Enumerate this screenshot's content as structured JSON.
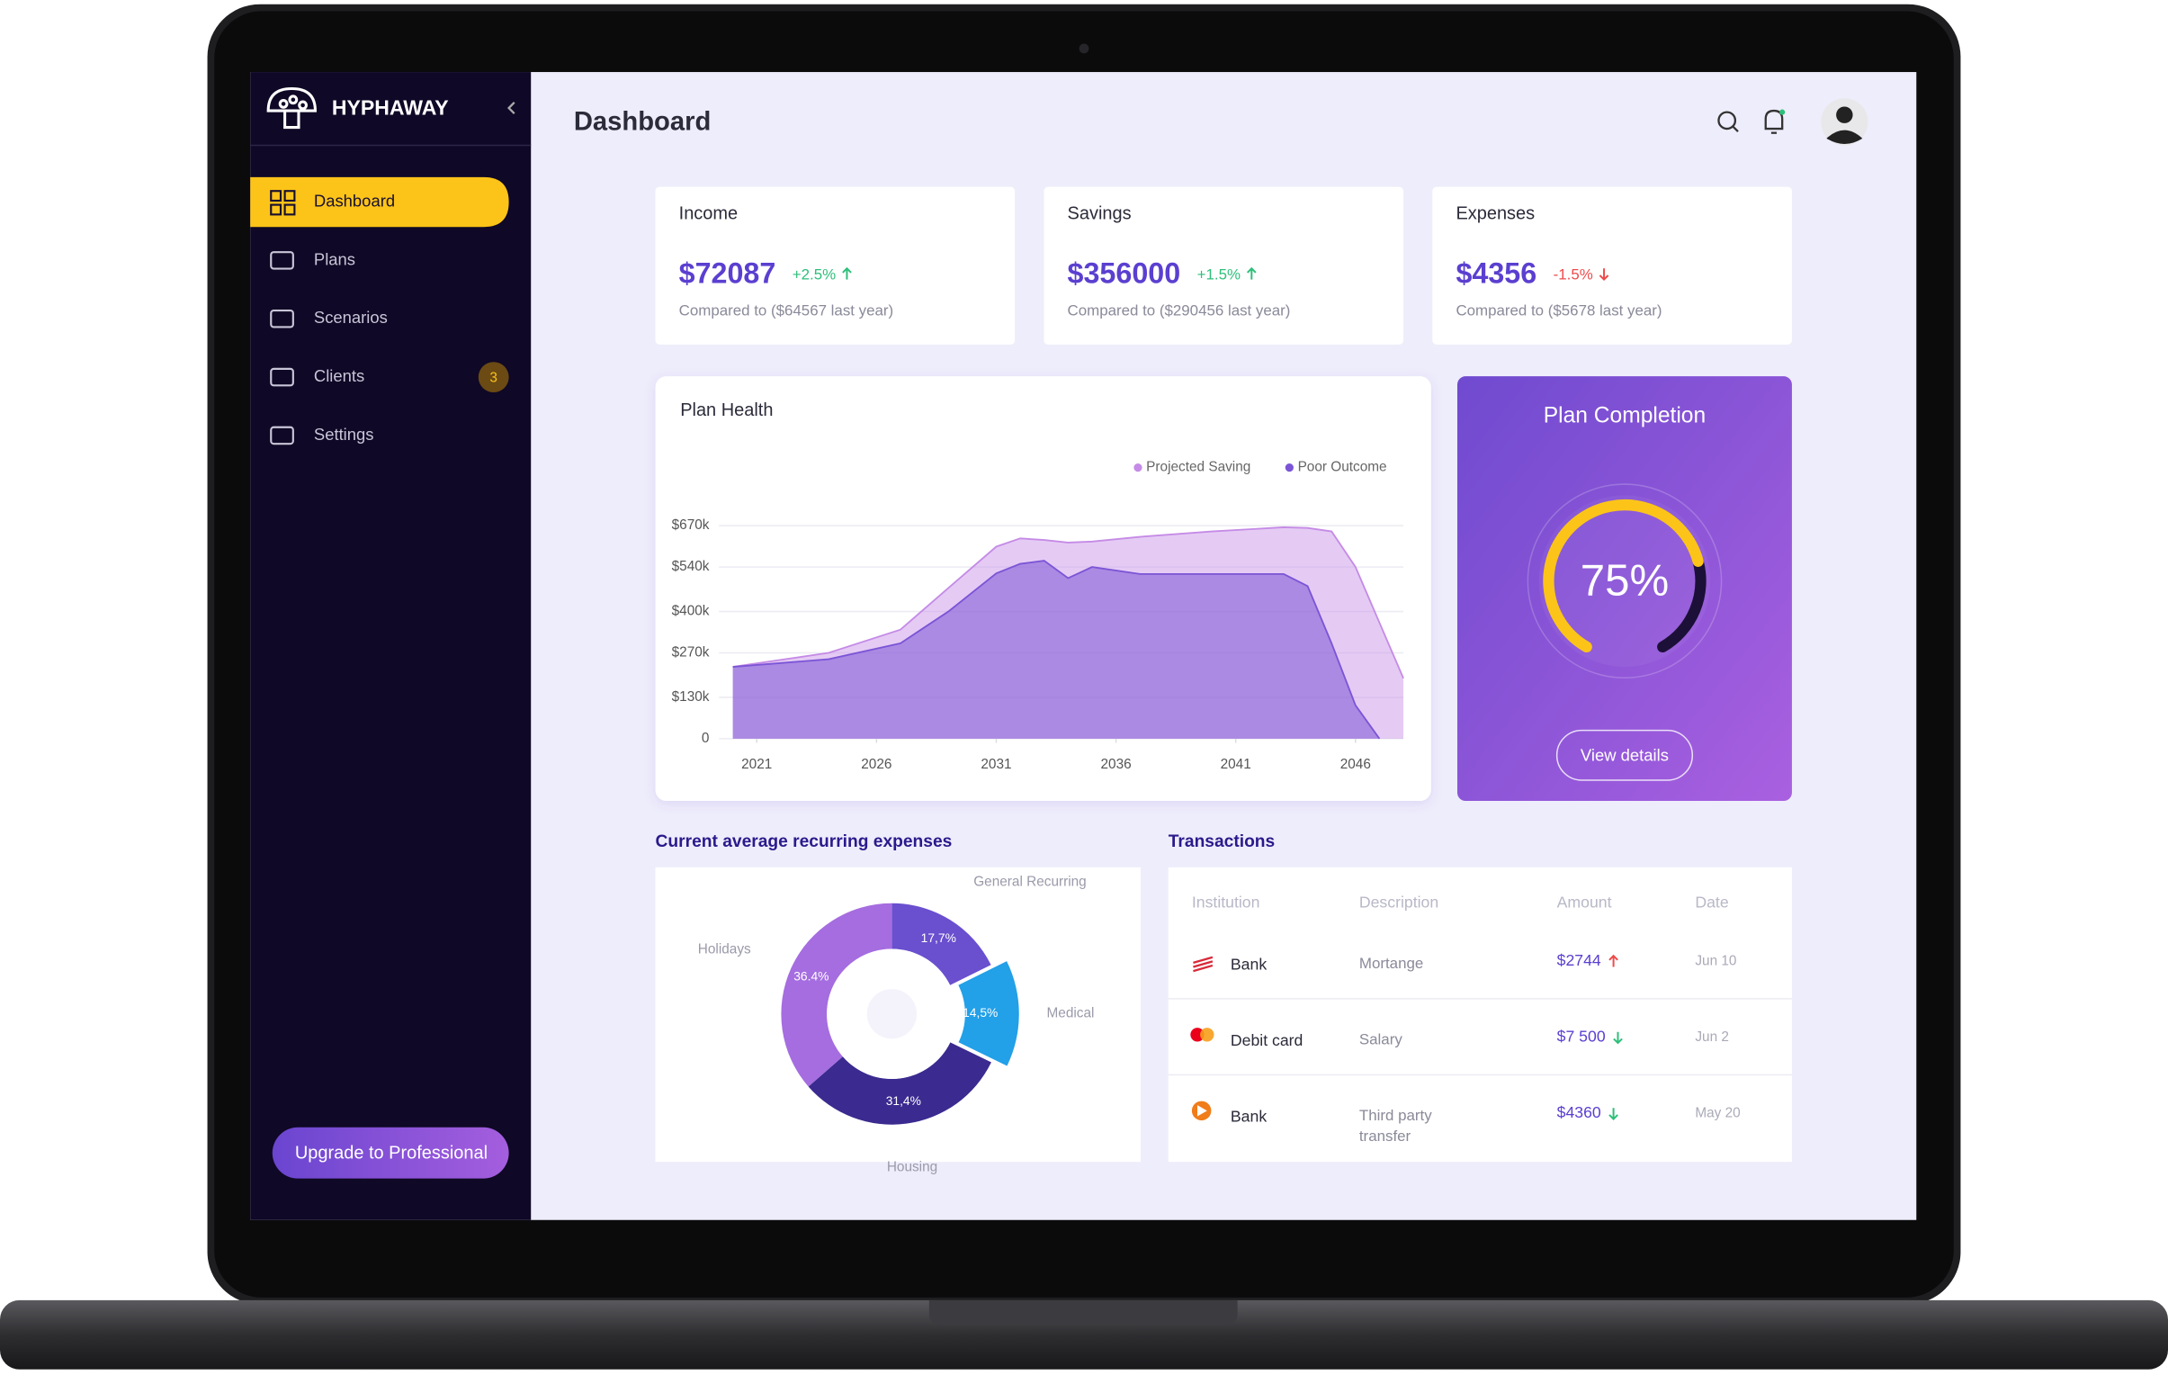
{
  "app": {
    "brand": "HYPHAWAY",
    "nav": [
      {
        "label": "Dashboard",
        "active": true
      },
      {
        "label": "Plans"
      },
      {
        "label": "Scenarios"
      },
      {
        "label": "Clients",
        "badge": 3
      },
      {
        "label": "Settings"
      }
    ],
    "upgrade": "Upgrade to Professional"
  },
  "header": {
    "title": "Dashboard"
  },
  "stats": [
    {
      "label": "Income",
      "value": "$72087",
      "change": "+2.5%",
      "trend": "up",
      "note": "Compared to ($64567 last year)"
    },
    {
      "label": "Savings",
      "value": "$356000",
      "change": "+1.5%",
      "trend": "up",
      "note": "Compared to ($290456 last year)"
    },
    {
      "label": "Expenses",
      "value": "$4356",
      "change": "-1.5%",
      "trend": "down",
      "note": "Compared to ($5678 last year)"
    }
  ],
  "plan_health": {
    "type": "area",
    "title": "Plan Health",
    "x": [
      2020,
      2024,
      2027,
      2029,
      2031,
      2032,
      2033,
      2034,
      2035,
      2037,
      2040,
      2043,
      2044,
      2045,
      2046,
      2047,
      2048
    ],
    "series": [
      {
        "name": "Projected Saving",
        "color": "#c58be6",
        "values": [
          226000,
          270000,
          343000,
          474000,
          604000,
          630000,
          625000,
          617000,
          620000,
          635000,
          652000,
          665000,
          663000,
          652000,
          540000,
          365000,
          190000
        ]
      },
      {
        "name": "Poor Outcome",
        "color": "#7b55d6",
        "values": [
          226000,
          250000,
          300000,
          400000,
          520000,
          550000,
          560000,
          505000,
          540000,
          518000,
          518000,
          518000,
          480000,
          300000,
          105000,
          0,
          null
        ]
      }
    ],
    "xlim": [
      2020,
      2048
    ],
    "xticks": [
      2021,
      2026,
      2031,
      2036,
      2041,
      2046
    ],
    "ylim": [
      0,
      670000
    ],
    "yticks": [
      0,
      {
        "value": 130000,
        "label": "$130k"
      },
      {
        "value": 270000,
        "label": "$270k"
      },
      {
        "value": 400000,
        "label": "$400k"
      },
      {
        "value": 540000,
        "label": "$540k"
      },
      {
        "value": 670000,
        "label": "$670k"
      }
    ],
    "grid": true,
    "legend": "top-right"
  },
  "plan_completion": {
    "type": "gauge",
    "title": "Plan Completion",
    "value": 75,
    "value_label": "75%",
    "color": "#fcc419",
    "track_color": "#1c1038",
    "button": "View details"
  },
  "expenses": {
    "type": "donut",
    "title": "Current average recurring expenses",
    "categories": [
      "General Recurring",
      "Medical",
      "Housing",
      "Holidays"
    ],
    "values": [
      17.7,
      14.5,
      31.4,
      36.4
    ],
    "value_labels": [
      "17,7%",
      "14,5%",
      "31,4%",
      "36.4%"
    ],
    "colors": [
      "#6a4fcf",
      "#22a0e8",
      "#3b2a8f",
      "#a56de0"
    ],
    "highlight": 1
  },
  "transactions": {
    "title": "Transactions",
    "columns": [
      "Institution",
      "Description",
      "Amount",
      "Date"
    ],
    "rows": [
      [
        "Bank",
        "Mortange",
        "$2744",
        "Jun 10"
      ],
      [
        "Debit card",
        "Salary",
        "$7 500",
        "Jun 2"
      ],
      [
        "Bank",
        "Third party transfer",
        "$4360",
        "May 20"
      ]
    ],
    "trends": [
      "up",
      "down",
      "down"
    ]
  }
}
